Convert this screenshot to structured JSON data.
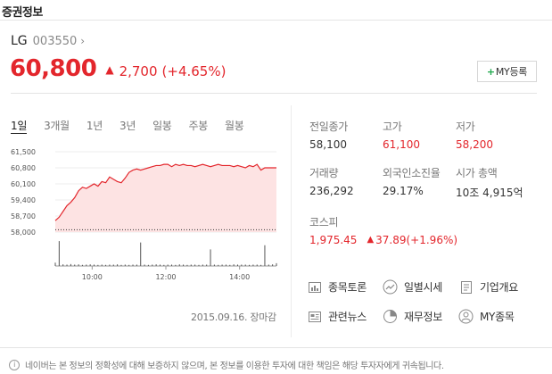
{
  "widget_title": "증권정보",
  "stock": {
    "name": "LG",
    "code": "003550",
    "price": "60,800",
    "change": "2,700",
    "rate": "(+4.65%)",
    "my_button": "MY등록"
  },
  "tabs": [
    {
      "label": "1일",
      "active": true
    },
    {
      "label": "3개월",
      "active": false
    },
    {
      "label": "1년",
      "active": false
    },
    {
      "label": "3년",
      "active": false
    },
    {
      "label": "일봉",
      "active": false
    },
    {
      "label": "주봉",
      "active": false
    },
    {
      "label": "월봉",
      "active": false
    }
  ],
  "chart_data": {
    "type": "area",
    "y_ticks": [
      "61,500",
      "60,800",
      "60,100",
      "59,400",
      "58,700",
      "58,000"
    ],
    "x_ticks": [
      "10:00",
      "12:00",
      "14:00"
    ],
    "ylim": [
      58000,
      61500
    ],
    "prev_close": 58100,
    "series": [
      {
        "values": [
          58500,
          58650,
          58900,
          59150,
          59300,
          59500,
          59800,
          59950,
          59900,
          60000,
          60100,
          60000,
          60200,
          60150,
          60400,
          60300,
          60200,
          60150,
          60350,
          60600,
          60700,
          60750,
          60700,
          60750,
          60800,
          60850,
          60900,
          60900,
          60950,
          60950,
          60850,
          60950,
          60900,
          60950,
          60900,
          60900,
          60850,
          60900,
          60950,
          60900,
          60850,
          60900,
          60950,
          60900,
          60900,
          60900,
          60850,
          60900,
          60850,
          60800,
          60900,
          60850,
          60950,
          60700,
          60800,
          60800,
          60800,
          60800
        ]
      }
    ],
    "volume": [
      0.12,
      0.9,
      0.06,
      0.05,
      0.07,
      0.05,
      0.06,
      0.04,
      0.05,
      0.06,
      0.05,
      0.04,
      0.05,
      0.04,
      0.05,
      0.05,
      0.06,
      0.04,
      0.05,
      0.04,
      0.05,
      0.05,
      0.85,
      0.05,
      0.04,
      0.05,
      0.06,
      0.05,
      0.04,
      0.05,
      0.05,
      0.04,
      0.06,
      0.05,
      0.04,
      0.05,
      0.05,
      0.04,
      0.05,
      0.05,
      0.6,
      0.05,
      0.04,
      0.05,
      0.05,
      0.04,
      0.06,
      0.05,
      0.05,
      0.05,
      0.04,
      0.05,
      0.05,
      0.04,
      0.75,
      0.05,
      0.06,
      0.1
    ],
    "colors": {
      "line": "#e3262c",
      "fill": "#fde3e3",
      "volume": "#555555",
      "prev_close": "#333333"
    }
  },
  "chart_footer": "2015.09.16. 장마감",
  "stats": [
    {
      "label": "전일종가",
      "value": "58,100",
      "red": false
    },
    {
      "label": "고가",
      "value": "61,100",
      "red": true
    },
    {
      "label": "저가",
      "value": "58,200",
      "red": true
    },
    {
      "label": "거래량",
      "value": "236,292",
      "red": false
    },
    {
      "label": "외국인소진율",
      "value": "29.17%",
      "red": false
    },
    {
      "label": "시가 총액",
      "value": "10조 4,915억",
      "red": false
    }
  ],
  "kospi": {
    "label": "코스피",
    "value": "1,975.45",
    "change": "37.89",
    "rate": "(+1.96%)"
  },
  "links": [
    {
      "label": "종목토론",
      "icon": "board-icon"
    },
    {
      "label": "일별시세",
      "icon": "trend-icon"
    },
    {
      "label": "기업개요",
      "icon": "document-icon"
    },
    {
      "label": "관련뉴스",
      "icon": "news-icon"
    },
    {
      "label": "재무정보",
      "icon": "pie-chart-icon"
    },
    {
      "label": "MY종목",
      "icon": "person-icon"
    }
  ],
  "notice": "네이버는 본 정보의 정확성에 대해 보증하지 않으며, 본 정보를 이용한 투자에 대한 책임은 해당 투자자에게 귀속됩니다."
}
